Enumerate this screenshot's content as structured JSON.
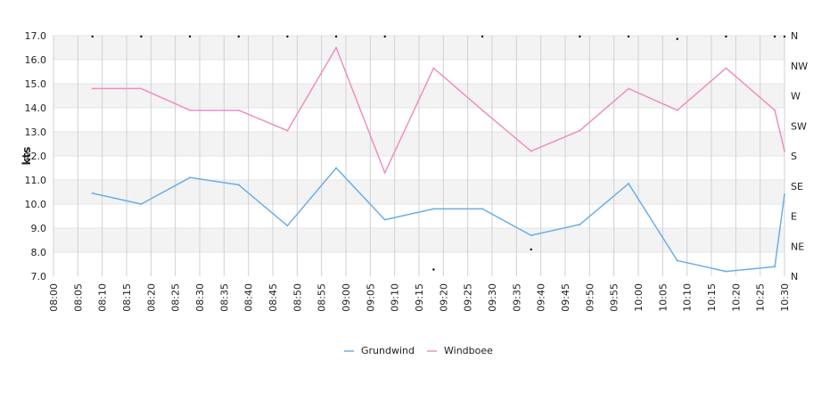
{
  "chart_data": {
    "type": "line",
    "ylabel": "kts",
    "ylim": [
      7,
      17
    ],
    "yticks": [
      "7.0",
      "8.0",
      "9.0",
      "10.0",
      "11.0",
      "12.0",
      "13.0",
      "14.0",
      "15.0",
      "16.0",
      "17.0"
    ],
    "y2ticks": [
      "N",
      "NE",
      "E",
      "SE",
      "S",
      "SW",
      "W",
      "NW",
      "N"
    ],
    "y2lim": [
      0,
      360
    ],
    "xlim": [
      "08:00",
      "10:30"
    ],
    "xticks": [
      "08:00",
      "08:05",
      "08:10",
      "08:15",
      "08:20",
      "08:25",
      "08:30",
      "08:35",
      "08:40",
      "08:45",
      "08:50",
      "08:55",
      "09:00",
      "09:05",
      "09:10",
      "09:15",
      "09:20",
      "09:25",
      "09:30",
      "09:35",
      "09:40",
      "09:45",
      "09:50",
      "09:55",
      "10:00",
      "10:05",
      "10:10",
      "10:15",
      "10:20",
      "10:25",
      "10:30"
    ],
    "grid": true,
    "legend_position": "bottom",
    "series": [
      {
        "name": "Grundwind",
        "color": "#6aaee8",
        "x": [
          "08:08",
          "08:18",
          "08:28",
          "08:38",
          "08:48",
          "08:58",
          "09:08",
          "09:18",
          "09:28",
          "09:38",
          "09:48",
          "09:58",
          "10:08",
          "10:18",
          "10:28",
          "10:30"
        ],
        "values": [
          10.45,
          10.0,
          11.1,
          10.8,
          9.1,
          11.5,
          9.35,
          9.8,
          9.8,
          8.7,
          9.15,
          10.85,
          7.65,
          7.2,
          7.4,
          10.4
        ]
      },
      {
        "name": "Windboee",
        "color": "#ef8ec0",
        "x": [
          "08:08",
          "08:18",
          "08:28",
          "08:38",
          "08:48",
          "08:58",
          "09:08",
          "09:18",
          "09:28",
          "09:38",
          "09:48",
          "09:58",
          "10:08",
          "10:18",
          "10:28",
          "10:30"
        ],
        "values": [
          14.8,
          14.8,
          13.9,
          13.9,
          13.05,
          16.5,
          11.3,
          15.65,
          13.9,
          12.2,
          13.05,
          14.8,
          13.9,
          15.65,
          13.9,
          12.2
        ]
      }
    ],
    "direction_points": {
      "x": [
        "08:08",
        "08:18",
        "08:28",
        "08:38",
        "08:48",
        "08:58",
        "09:08",
        "09:18",
        "09:28",
        "09:38",
        "09:48",
        "09:58",
        "10:08",
        "10:18",
        "10:28",
        "10:30"
      ],
      "values": [
        360,
        360,
        360,
        360,
        360,
        360,
        360,
        10,
        360,
        40,
        360,
        360,
        355,
        360,
        360,
        360
      ]
    }
  }
}
